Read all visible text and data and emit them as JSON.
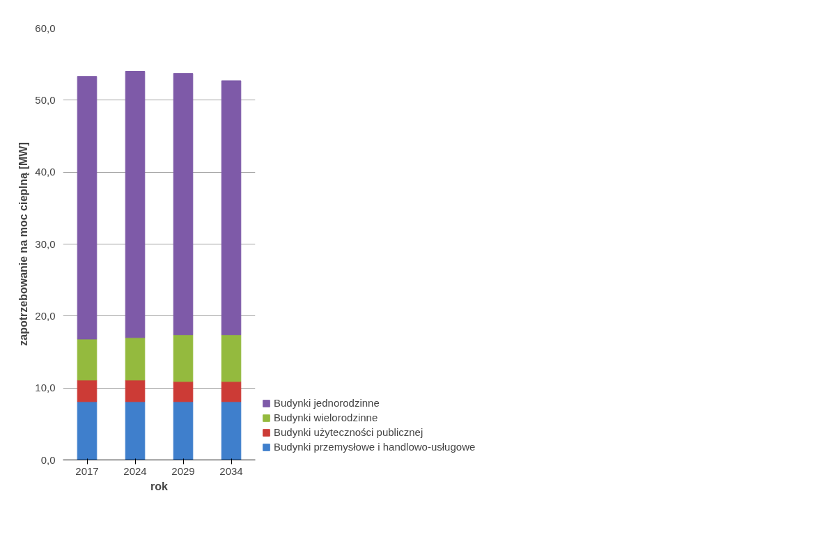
{
  "chart_data": {
    "type": "bar",
    "stacked": true,
    "xlabel": "rok",
    "ylabel": "zapotrzebowanie na moc cieplną [MW]",
    "categories": [
      "2017",
      "2024",
      "2029",
      "2034"
    ],
    "series": [
      {
        "name": "Budynki przemysłowe i handlowo-usługowe",
        "color": "#3f7fcc",
        "values": [
          8.1,
          8.1,
          8.1,
          8.1
        ]
      },
      {
        "name": "Budynki użyteczności publicznej",
        "color": "#cc3b36",
        "values": [
          3.0,
          3.0,
          2.8,
          2.8
        ]
      },
      {
        "name": "Budynki wielorodzinne",
        "color": "#94ba3e",
        "values": [
          5.7,
          5.9,
          6.5,
          6.5
        ]
      },
      {
        "name": "Budynki jednorodzinne",
        "color": "#7e5aa8",
        "values": [
          36.5,
          37.0,
          36.3,
          35.3
        ]
      }
    ],
    "ylim": [
      0,
      60
    ],
    "yticks": [
      {
        "value": 0,
        "label": "0,0"
      },
      {
        "value": 10,
        "label": "10,0"
      },
      {
        "value": 20,
        "label": "20,0"
      },
      {
        "value": 30,
        "label": "30,0"
      },
      {
        "value": 40,
        "label": "40,0"
      },
      {
        "value": 50,
        "label": "50,0"
      },
      {
        "value": 60,
        "label": "60,0"
      }
    ],
    "grid": "y",
    "legend": "bottom right"
  }
}
